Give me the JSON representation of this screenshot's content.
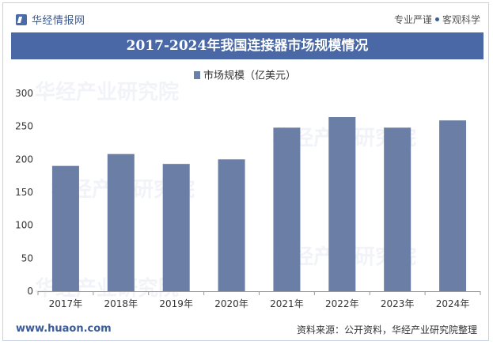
{
  "brand": {
    "name": "华经情报网"
  },
  "slogan": {
    "left": "专业严谨",
    "right": "客观科学"
  },
  "watermark": "华经产业研究院",
  "chart_data": {
    "type": "bar",
    "title": "2017-2024年我国连接器市场规模情况",
    "categories": [
      "2017年",
      "2018年",
      "2019年",
      "2020年",
      "2021年",
      "2022年",
      "2023年",
      "2024年"
    ],
    "series": [
      {
        "name": "市场规模（亿美元）",
        "values": [
          190,
          208,
          193,
          200,
          248,
          264,
          248,
          259
        ]
      }
    ],
    "ylim": [
      0,
      300
    ],
    "yticks": [
      0,
      50,
      100,
      150,
      200,
      250,
      300
    ],
    "legend": "top-center",
    "grid": false,
    "colors": {
      "bar": "#6a7ea6"
    }
  },
  "footer": {
    "url": "www.huaon.com",
    "source": "资料来源：公开资料，华经产业研究院整理"
  }
}
